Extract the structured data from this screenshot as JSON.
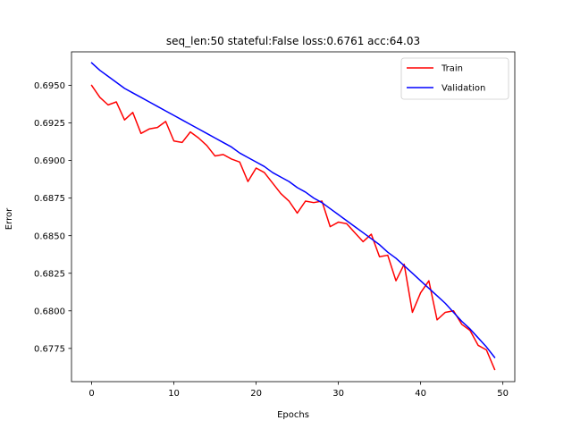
{
  "chart_data": {
    "type": "line",
    "title": "seq_len:50 stateful:False loss:0.6761 acc:64.03",
    "xlabel": "Epochs",
    "ylabel": "Error",
    "xlim": [
      -2.45,
      51.45
    ],
    "ylim": [
      0.67529,
      0.69723
    ],
    "xticks": [
      0,
      10,
      20,
      30,
      40,
      50
    ],
    "yticks": [
      0.6775,
      0.68,
      0.6825,
      0.685,
      0.6875,
      0.69,
      0.6925,
      0.695
    ],
    "ytick_labels": [
      "0.6775",
      "0.6800",
      "0.6825",
      "0.6850",
      "0.6875",
      "0.6900",
      "0.6925",
      "0.6950"
    ],
    "grid": false,
    "legend_position": "upper right",
    "x": [
      0,
      1,
      2,
      3,
      4,
      5,
      6,
      7,
      8,
      9,
      10,
      11,
      12,
      13,
      14,
      15,
      16,
      17,
      18,
      19,
      20,
      21,
      22,
      23,
      24,
      25,
      26,
      27,
      28,
      29,
      30,
      31,
      32,
      33,
      34,
      35,
      36,
      37,
      38,
      39,
      40,
      41,
      42,
      43,
      44,
      45,
      46,
      47,
      48,
      49
    ],
    "series": [
      {
        "name": "Train",
        "color": "#ff0000",
        "values": [
          0.695,
          0.6942,
          0.6937,
          0.6939,
          0.6927,
          0.6932,
          0.6918,
          0.6921,
          0.6922,
          0.6926,
          0.6913,
          0.6912,
          0.6919,
          0.6915,
          0.691,
          0.6903,
          0.6904,
          0.6901,
          0.6899,
          0.6886,
          0.6895,
          0.6892,
          0.6885,
          0.6878,
          0.6873,
          0.6865,
          0.6873,
          0.6872,
          0.6873,
          0.6856,
          0.6859,
          0.6858,
          0.6852,
          0.6846,
          0.6851,
          0.6836,
          0.6837,
          0.682,
          0.6831,
          0.6799,
          0.6812,
          0.682,
          0.6794,
          0.6799,
          0.68,
          0.6791,
          0.6787,
          0.6777,
          0.6774,
          0.6761
        ]
      },
      {
        "name": "Validation",
        "color": "#0000ff",
        "values": [
          0.6965,
          0.696,
          0.6956,
          0.6952,
          0.6948,
          0.6945,
          0.6942,
          0.6939,
          0.6936,
          0.6933,
          0.693,
          0.6927,
          0.6924,
          0.6921,
          0.6918,
          0.6915,
          0.6912,
          0.6909,
          0.6905,
          0.6902,
          0.6899,
          0.6896,
          0.6892,
          0.6889,
          0.6886,
          0.6882,
          0.6879,
          0.6875,
          0.6872,
          0.6868,
          0.6864,
          0.686,
          0.6856,
          0.6852,
          0.6848,
          0.6844,
          0.6839,
          0.6835,
          0.683,
          0.6825,
          0.682,
          0.6815,
          0.681,
          0.6805,
          0.6799,
          0.6793,
          0.6788,
          0.6782,
          0.6776,
          0.6769
        ]
      }
    ]
  }
}
